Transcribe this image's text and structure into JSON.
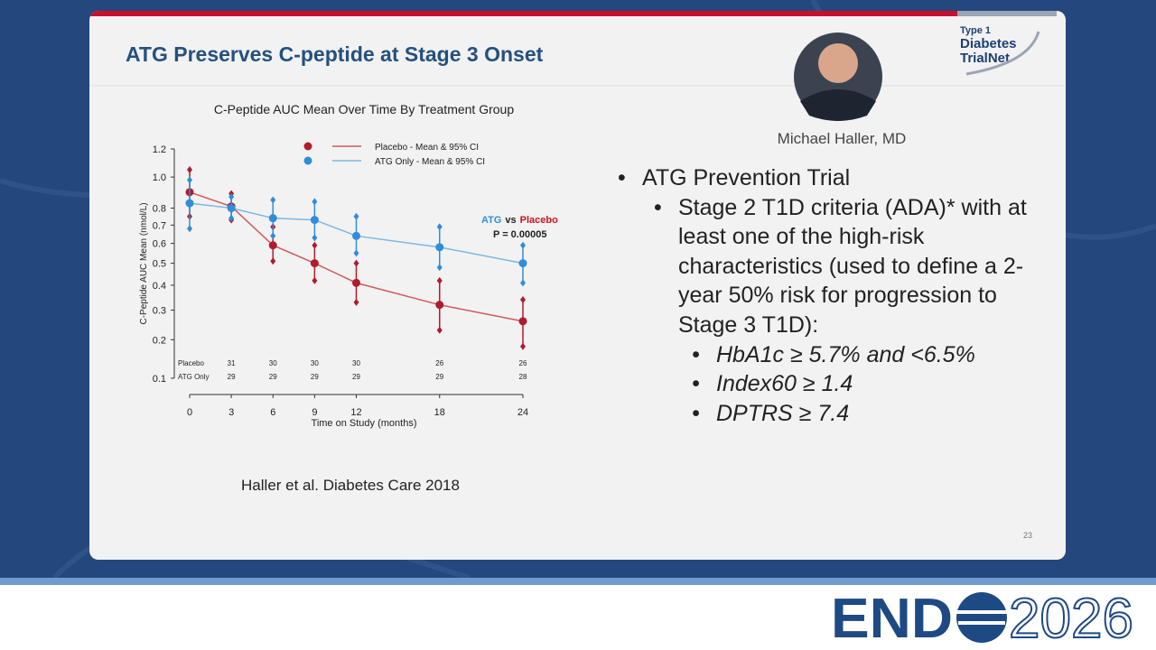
{
  "slide": {
    "title": "ATG Preserves C-peptide at Stage 3 Onset",
    "speaker": "Michael Haller, MD",
    "logo": {
      "line1": "Type 1",
      "line2": "Diabetes",
      "line3": "TrialNet"
    },
    "bullets": [
      {
        "text": "ATG Prevention Trial",
        "children": [
          {
            "text": "Stage 2 T1D criteria (ADA)* with at least one of the high-risk characteristics (used to define a 2-year 50% risk for progression to Stage 3 T1D):",
            "children": [
              {
                "text": "HbA1c ≥ 5.7% and <6.5%"
              },
              {
                "text": "Index60 ≥ 1.4"
              },
              {
                "text": "DPTRS ≥ 7.4"
              }
            ]
          }
        ]
      }
    ],
    "citation": "Haller et al. Diabetes Care 2018",
    "page_number": 23
  },
  "footer": {
    "brand": "END",
    "year": "2026"
  },
  "chart_data": {
    "type": "line",
    "title": "C-Peptide AUC Mean Over Time By Treatment Group",
    "x_label": "Time on Study (months)",
    "y_label": "C-Peptide AUC Mean (nmol/L)",
    "y_scale": "sqrt",
    "x": [
      0,
      3,
      6,
      9,
      12,
      18,
      24
    ],
    "xlim": [
      0,
      24
    ],
    "xticks": [
      0,
      3,
      6,
      9,
      12,
      18,
      24
    ],
    "ylim": [
      0.1,
      1.2
    ],
    "yticks": [
      0.1,
      0.2,
      0.3,
      0.4,
      0.5,
      0.6,
      0.7,
      0.8,
      {
        "value": 1.0,
        "label": "1.0"
      },
      1.2
    ],
    "series": [
      {
        "name": "Placebo - Mean & 95% CI",
        "color": "#b01c2e",
        "line_color": "#d05a5a",
        "values": [
          0.9,
          0.81,
          0.59,
          0.5,
          0.41,
          0.32,
          0.26
        ],
        "lower": [
          0.75,
          0.73,
          0.51,
          0.42,
          0.33,
          0.23,
          0.18
        ],
        "upper": [
          1.05,
          0.89,
          0.69,
          0.59,
          0.5,
          0.42,
          0.34
        ]
      },
      {
        "name": "ATG Only - Mean & 95% CI",
        "color": "#2f8ddb",
        "line_color": "#7ab8e8",
        "values": [
          0.83,
          0.8,
          0.74,
          0.73,
          0.64,
          0.58,
          0.5
        ],
        "lower": [
          0.68,
          0.74,
          0.64,
          0.63,
          0.55,
          0.48,
          0.41
        ],
        "upper": [
          0.98,
          0.87,
          0.85,
          0.84,
          0.75,
          0.69,
          0.59
        ]
      }
    ],
    "annotation": {
      "parts": [
        "ATG",
        "vs",
        "Placebo"
      ],
      "p_value": "P = 0.00005"
    },
    "at_risk": {
      "labels": [
        "Placebo",
        "ATG Only"
      ],
      "rows": [
        [
          null,
          31,
          30,
          30,
          30,
          26,
          26
        ],
        [
          null,
          29,
          29,
          29,
          29,
          29,
          28
        ]
      ]
    }
  }
}
